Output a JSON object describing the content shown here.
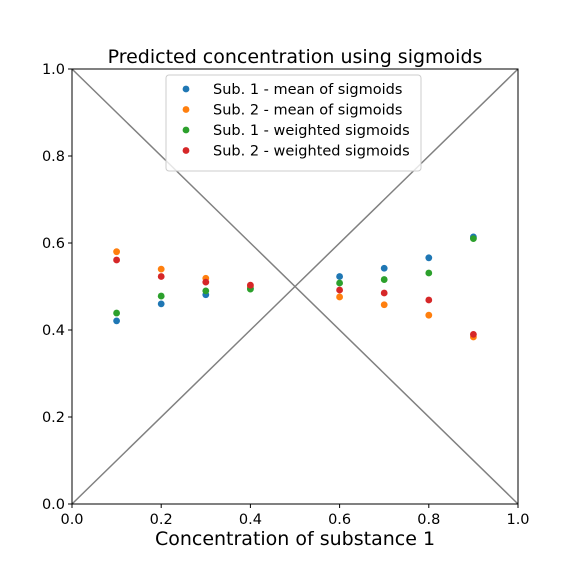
{
  "chart_data": {
    "type": "scatter",
    "title": "Predicted concentration using sigmoids",
    "xlabel": "Concentration of substance 1",
    "ylabel": "",
    "xlim": [
      0,
      1
    ],
    "ylim": [
      0,
      1
    ],
    "xticks": [
      "0.0",
      "0.2",
      "0.4",
      "0.6",
      "0.8",
      "1.0"
    ],
    "yticks": [
      "0.0",
      "0.2",
      "0.4",
      "0.6",
      "0.8",
      "1.0"
    ],
    "grid": false,
    "legend_position": "top-center",
    "diagonal_color": "#808080",
    "x": [
      0.1,
      0.2,
      0.3,
      0.4,
      0.6,
      0.7,
      0.8,
      0.9
    ],
    "series": [
      {
        "name": "Sub. 1 - mean of sigmoids",
        "color": "#1f77b4",
        "values": [
          0.421,
          0.46,
          0.481,
          0.496,
          0.523,
          0.542,
          0.566,
          0.614
        ]
      },
      {
        "name": "Sub. 2 - mean of sigmoids",
        "color": "#ff7f0e",
        "values": [
          0.58,
          0.54,
          0.519,
          0.5,
          0.476,
          0.458,
          0.434,
          0.384
        ]
      },
      {
        "name": "Sub. 1 - weighted sigmoids",
        "color": "#2ca02c",
        "values": [
          0.439,
          0.478,
          0.49,
          0.494,
          0.508,
          0.516,
          0.531,
          0.61
        ]
      },
      {
        "name": "Sub. 2 - weighted sigmoids",
        "color": "#d62728",
        "values": [
          0.561,
          0.523,
          0.51,
          0.503,
          0.492,
          0.485,
          0.469,
          0.39
        ]
      }
    ]
  }
}
